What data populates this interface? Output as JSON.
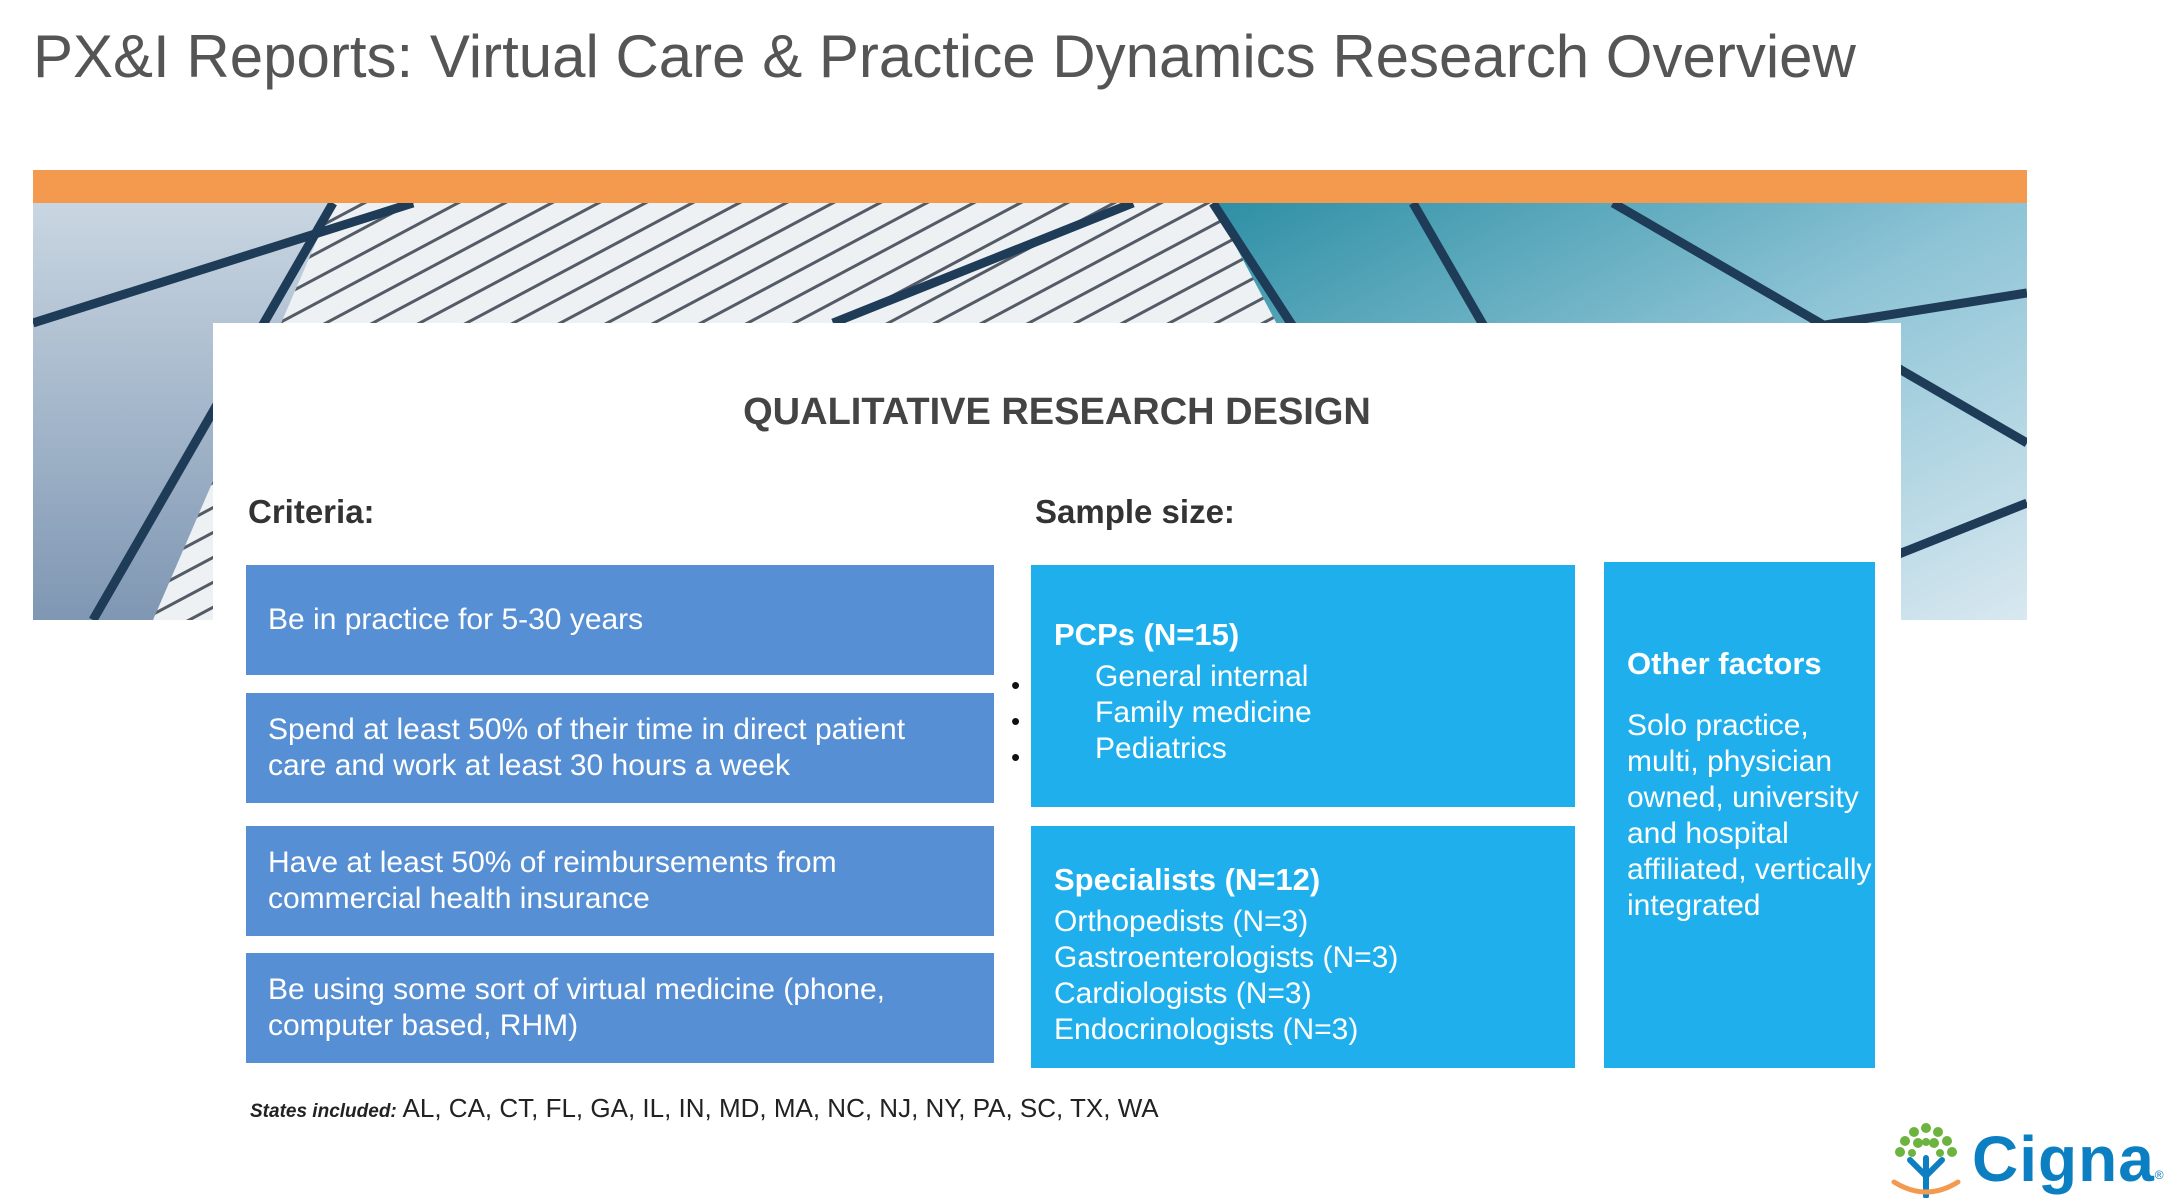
{
  "slide": {
    "title": "PX&I Reports: Virtual Care & Practice Dynamics Research Overview"
  },
  "design": {
    "heading": "QUALITATIVE RESEARCH DESIGN",
    "criteria_label": "Criteria:",
    "sample_label": "Sample size:",
    "criteria": [
      [
        "Be in practice for 5-30 years"
      ],
      [
        "Spend at least 50% of their time in direct patient",
        "care and work at least 30 hours a week"
      ],
      [
        "Have at least 50% of reimbursements from",
        "commercial health insurance"
      ],
      [
        "Be using some sort of virtual medicine (phone,",
        "computer based, RHM)"
      ]
    ],
    "pcps": {
      "title": "PCPs (N=15)",
      "items": [
        "General internal",
        "Family medicine",
        "Pediatrics"
      ]
    },
    "specialists": {
      "title": "Specialists (N=12)",
      "items": [
        "Orthopedists (N=3)",
        "Gastroenterologists (N=3)",
        "Cardiologists (N=3)",
        "Endocrinologists (N=3)"
      ]
    },
    "other": {
      "title": "Other factors",
      "lines": [
        "Solo practice,",
        "multi, physician",
        "owned, university",
        "and hospital",
        "affiliated, vertically",
        "integrated"
      ]
    }
  },
  "footer": {
    "states_label": "States included:",
    "states": "AL, CA, CT, FL, GA, IL, IN, MD, MA, NC, NJ, NY, PA, SC, TX, WA",
    "logo_text": "Cigna",
    "logo_mark": "®"
  },
  "colors": {
    "accent_orange": "#F39A4E",
    "criteria_blue": "#578FD4",
    "sample_cyan": "#1FAFEC",
    "brand_blue": "#0B7FC2",
    "brand_green": "#6CB33F"
  },
  "icons": [
    "bullet-icon",
    "cigna-tree-icon"
  ]
}
